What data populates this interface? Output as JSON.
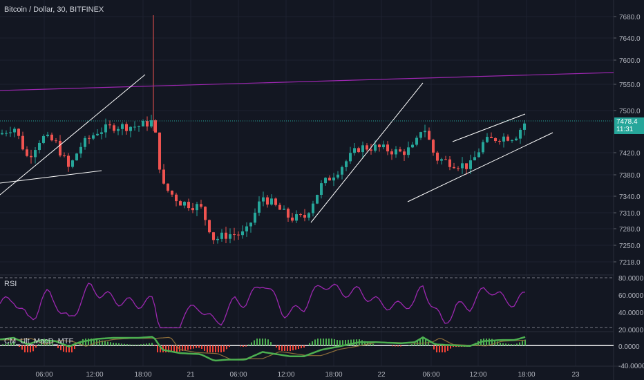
{
  "header": {
    "symbol_title": "Bitcoin / Dollar, 30, BITFINEX"
  },
  "price_axis": {
    "labels": [
      "7680.0",
      "7640.0",
      "7600.0",
      "7550.0",
      "7500.0",
      "7420.0",
      "7380.0",
      "7340.0",
      "7310.0",
      "7280.0",
      "7250.0",
      "7218.0"
    ]
  },
  "price_tag": {
    "price": "7478.4",
    "countdown": "11:31"
  },
  "rsi_pane": {
    "label": "RSI",
    "axis": [
      "80.0000",
      "60.0000",
      "40.0000",
      "20.0000"
    ]
  },
  "macd_pane": {
    "label": "CM_Ult_MacD_MTF",
    "axis": [
      "0.0000",
      "-40.0000"
    ]
  },
  "time_axis": {
    "labels": [
      "06:00",
      "12:00",
      "18:00",
      "21",
      "06:00",
      "12:00",
      "18:00",
      "22",
      "06:00",
      "12:00",
      "18:00",
      "23"
    ]
  },
  "colors": {
    "background": "#131722",
    "up": "#26a69a",
    "down": "#ef5350",
    "rsi": "#9c27b0",
    "trend_purple": "#9c27b0",
    "trendline": "#ffffff",
    "macd_up": "#4caf50",
    "macd_down": "#f44336",
    "signal": "#8d6e3a"
  }
}
